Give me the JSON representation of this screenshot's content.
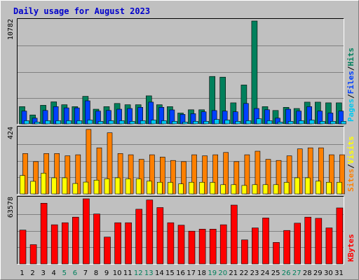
{
  "title": "Daily usage for August 2023",
  "colors": {
    "hits": "#00805c",
    "files": "#0040ff",
    "pages": "#00c8f0",
    "visits": "#ffff00",
    "sites": "#ff8000",
    "kbytes": "#ff0000",
    "weekend_day": "#00805c",
    "weekday": "#000000"
  },
  "chart_data": [
    {
      "type": "bar",
      "panel": "hits-files-pages",
      "ymax_label": "10782",
      "ylim": [
        0,
        10782
      ],
      "legend": [
        "Pages",
        "Files",
        "Hits"
      ],
      "legend_separator": "/",
      "x": [
        1,
        2,
        3,
        4,
        5,
        6,
        7,
        8,
        9,
        10,
        11,
        12,
        13,
        14,
        15,
        16,
        17,
        18,
        19,
        20,
        21,
        22,
        23,
        24,
        25,
        26,
        27,
        28,
        29,
        30,
        31
      ],
      "weekend_days": [
        5,
        6,
        12,
        13,
        19,
        20,
        26,
        27
      ],
      "series": [
        {
          "name": "Hits",
          "color_key": "hits",
          "values": [
            1810,
            940,
            1950,
            2310,
            2010,
            1810,
            2890,
            1540,
            1810,
            2140,
            2010,
            2010,
            2940,
            2010,
            1810,
            1140,
            1480,
            1480,
            4970,
            4900,
            2210,
            4080,
            10782,
            1810,
            1410,
            1740,
            1610,
            2280,
            2280,
            2210,
            2210
          ]
        },
        {
          "name": "Files",
          "color_key": "files",
          "values": [
            1340,
            600,
            1410,
            1810,
            1680,
            1680,
            2420,
            1340,
            1410,
            1540,
            1610,
            1740,
            2280,
            1740,
            1470,
            1000,
            1070,
            1270,
            1400,
            1340,
            1270,
            2140,
            1610,
            1480,
            600,
            1540,
            1340,
            1810,
            1340,
            1140,
            1340
          ]
        },
        {
          "name": "Pages",
          "color_key": "pages",
          "values": [
            340,
            200,
            340,
            340,
            340,
            340,
            400,
            270,
            340,
            340,
            270,
            340,
            400,
            340,
            270,
            200,
            270,
            270,
            470,
            400,
            270,
            340,
            540,
            340,
            200,
            270,
            340,
            400,
            270,
            270,
            270
          ]
        }
      ]
    },
    {
      "type": "bar",
      "panel": "visits-sites",
      "ymax_label": "424",
      "ylim": [
        0,
        424
      ],
      "legend": [
        "Sites",
        "Visits"
      ],
      "legend_separator": "/",
      "x": [
        1,
        2,
        3,
        4,
        5,
        6,
        7,
        8,
        9,
        10,
        11,
        12,
        13,
        14,
        15,
        16,
        17,
        18,
        19,
        20,
        21,
        22,
        23,
        24,
        25,
        26,
        27,
        28,
        29,
        30,
        31
      ],
      "series": [
        {
          "name": "Visits",
          "color_key": "visits",
          "values": [
            120,
            82,
            135,
            105,
            105,
            68,
            77,
            90,
            98,
            105,
            98,
            98,
            83,
            76,
            75,
            65,
            76,
            76,
            75,
            60,
            60,
            55,
            60,
            60,
            60,
            75,
            105,
            105,
            83,
            76,
            76
          ]
        },
        {
          "name": "Sites",
          "color_key": "sites",
          "values": [
            263,
            210,
            263,
            263,
            248,
            255,
            420,
            300,
            398,
            263,
            255,
            225,
            255,
            240,
            218,
            210,
            255,
            248,
            255,
            270,
            210,
            255,
            278,
            225,
            218,
            248,
            293,
            300,
            300,
            255,
            255
          ]
        }
      ]
    },
    {
      "type": "bar",
      "panel": "kbytes",
      "ymax_label": "63578",
      "ylim": [
        0,
        63578
      ],
      "legend": [
        "KBytes"
      ],
      "x": [
        1,
        2,
        3,
        4,
        5,
        6,
        7,
        8,
        9,
        10,
        11,
        12,
        13,
        14,
        15,
        16,
        17,
        18,
        19,
        20,
        21,
        22,
        23,
        24,
        25,
        26,
        27,
        28,
        29,
        30,
        31
      ],
      "series": [
        {
          "name": "KBytes",
          "color_key": "kbytes",
          "values": [
            33000,
            18800,
            59250,
            38220,
            40170,
            45640,
            63578,
            48770,
            26150,
            40170,
            40170,
            53400,
            62400,
            55040,
            40170,
            37820,
            31990,
            33950,
            33950,
            38220,
            57400,
            23450,
            35130,
            44830,
            21000,
            32690,
            39790,
            45640,
            44480,
            35130,
            54680
          ]
        }
      ]
    }
  ]
}
